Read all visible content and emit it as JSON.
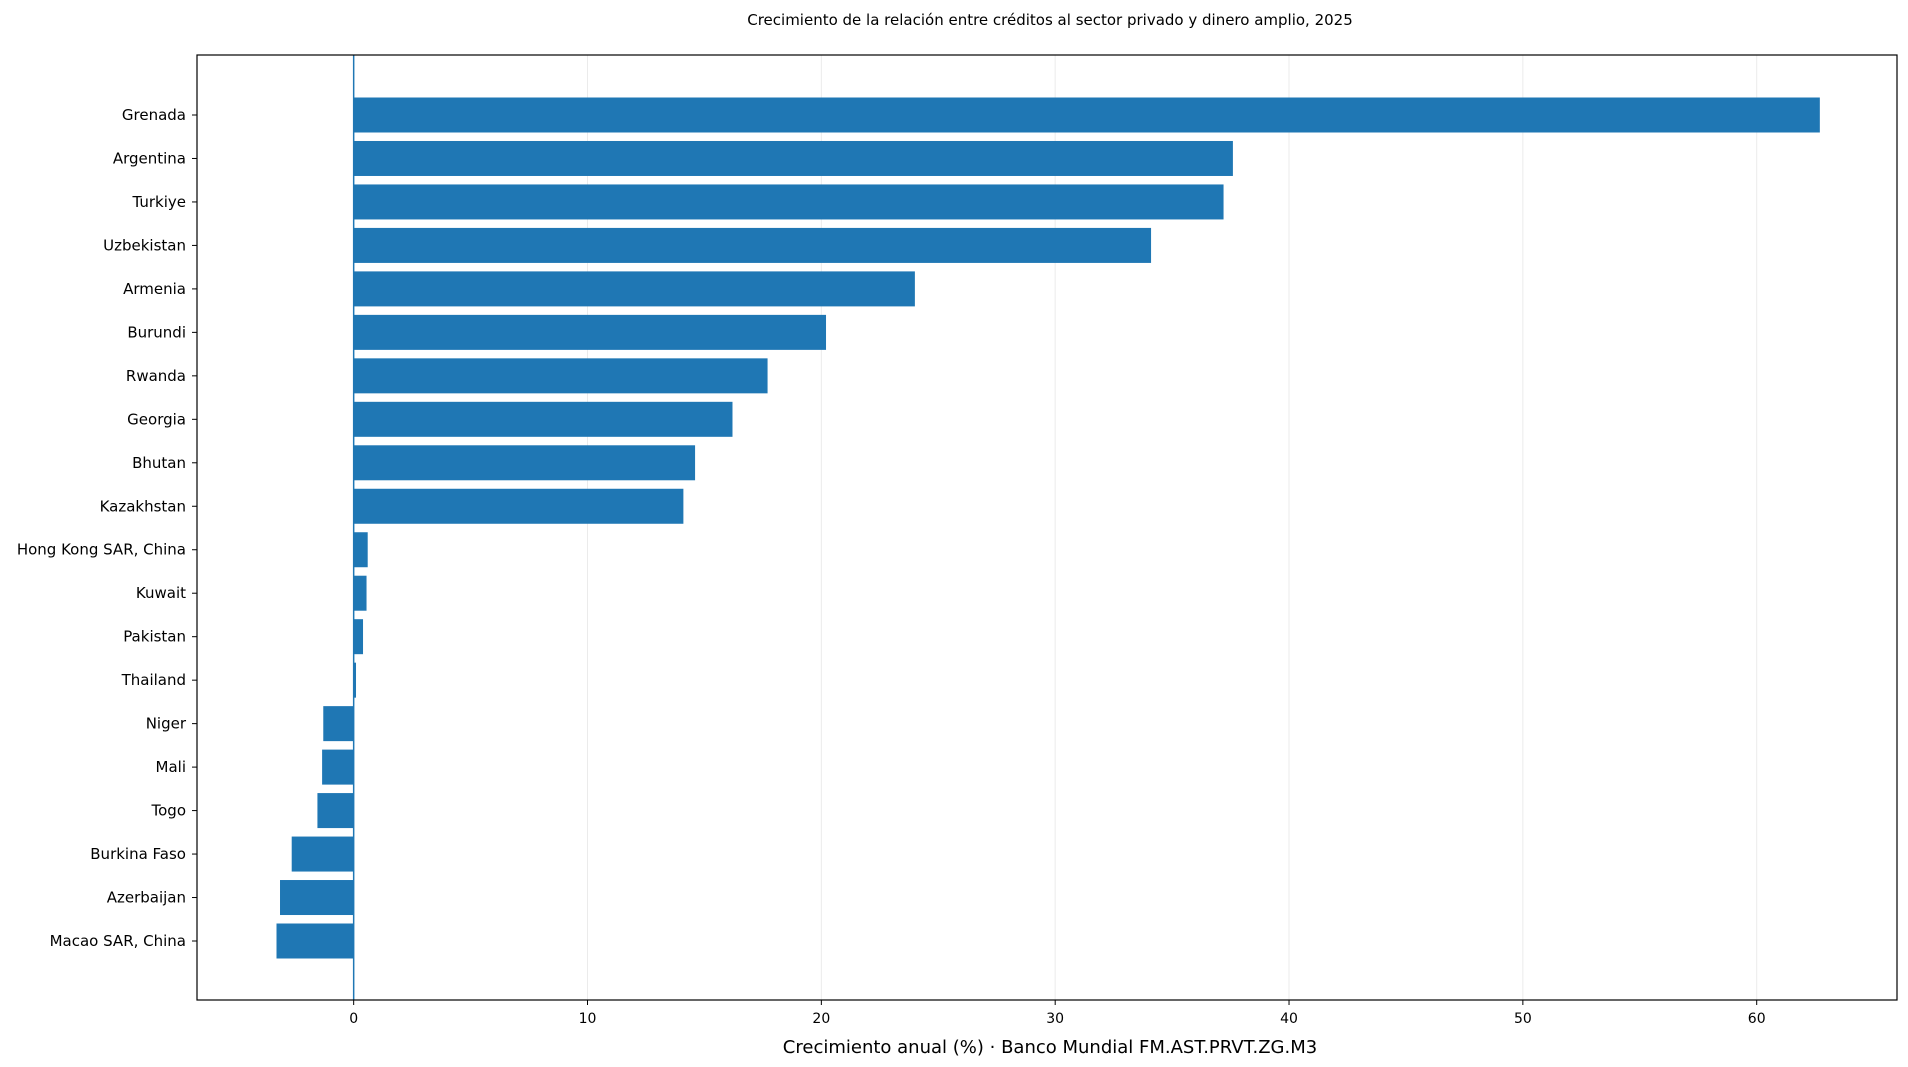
{
  "chart_data": {
    "type": "bar",
    "orientation": "horizontal",
    "title": "Crecimiento de la relación entre créditos al sector privado y dinero amplio, 2025",
    "xlabel": "Crecimiento anual (%) · Banco Mundial FM.AST.PRVT.ZG.M3",
    "ylabel": "",
    "categories": [
      "Grenada",
      "Argentina",
      "Turkiye",
      "Uzbekistan",
      "Armenia",
      "Burundi",
      "Rwanda",
      "Georgia",
      "Bhutan",
      "Kazakhstan",
      "Hong Kong SAR, China",
      "Kuwait",
      "Pakistan",
      "Thailand",
      "Niger",
      "Mali",
      "Togo",
      "Burkina Faso",
      "Azerbaijan",
      "Macao SAR, China"
    ],
    "values": [
      62.7,
      37.6,
      37.2,
      34.1,
      24.0,
      20.2,
      17.7,
      16.2,
      14.6,
      14.1,
      0.6,
      0.55,
      0.4,
      0.1,
      -1.3,
      -1.35,
      -1.55,
      -2.65,
      -3.15,
      -3.3
    ],
    "xlim": [
      -6.7,
      66.0
    ],
    "xticks": [
      0,
      10,
      20,
      30,
      40,
      50,
      60
    ],
    "xtick_labels": [
      "0",
      "10",
      "20",
      "30",
      "40",
      "50",
      "60"
    ],
    "grid": "vertical",
    "zero_line": true,
    "colors": {
      "bar": "#1f77b4",
      "zero_line": "#1f77b4",
      "grid": "#ebebeb",
      "axes": "#000000"
    }
  }
}
